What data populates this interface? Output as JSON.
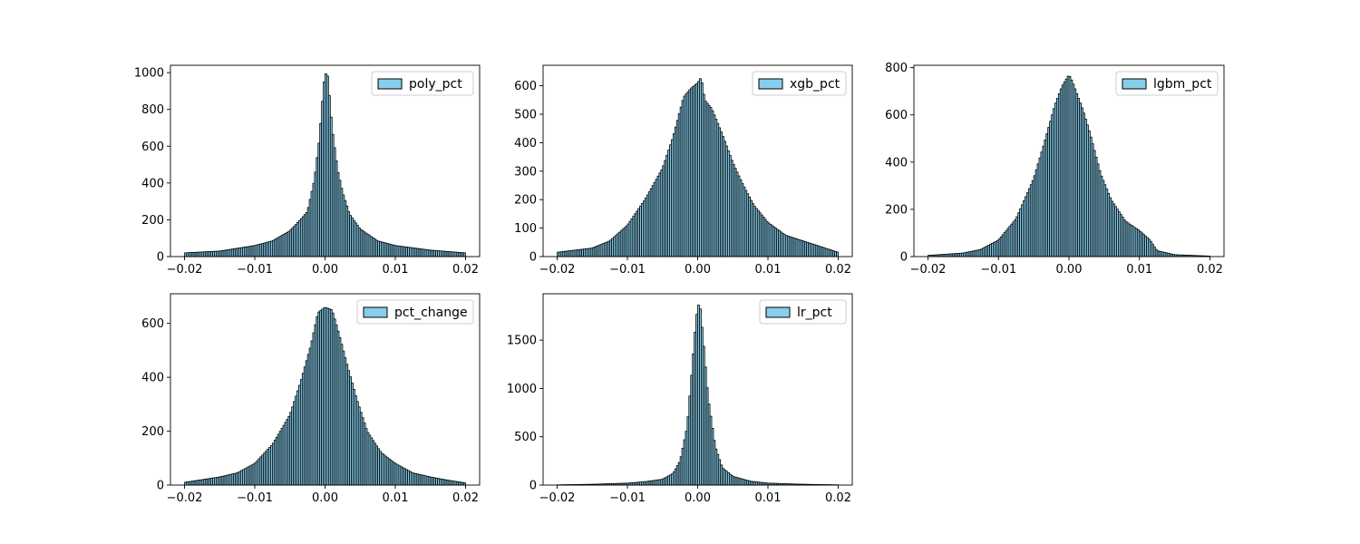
{
  "chart_data": [
    {
      "type": "bar",
      "legend": "poly_pct",
      "legend_position": "upper right",
      "bar_color": "#87ceeb",
      "edge_color": "#000000",
      "xlim": [
        -0.022,
        0.022
      ],
      "ylim": [
        0,
        1040
      ],
      "xticks": [
        -0.02,
        -0.01,
        0.0,
        0.01,
        0.02
      ],
      "xtick_labels": [
        "−0.02",
        "−0.01",
        "0.00",
        "0.01",
        "0.02"
      ],
      "yticks": [
        0,
        200,
        400,
        600,
        800,
        1000
      ],
      "ytick_labels": [
        "0",
        "200",
        "400",
        "600",
        "800",
        "1000"
      ],
      "bin_range": [
        -0.02,
        0.02
      ],
      "bins": 160,
      "peaks": [
        [
          -0.02,
          20
        ],
        [
          -0.015,
          30
        ],
        [
          -0.01,
          60
        ],
        [
          -0.0075,
          85
        ],
        [
          -0.005,
          140
        ],
        [
          -0.0035,
          200
        ],
        [
          -0.0025,
          245
        ],
        [
          -0.0015,
          420
        ],
        [
          -0.0008,
          640
        ],
        [
          -0.0003,
          880
        ],
        [
          0.0,
          1000
        ],
        [
          0.0004,
          980
        ],
        [
          0.001,
          700
        ],
        [
          0.0018,
          470
        ],
        [
          0.0025,
          350
        ],
        [
          0.0035,
          230
        ],
        [
          0.005,
          150
        ],
        [
          0.0075,
          85
        ],
        [
          0.01,
          60
        ],
        [
          0.015,
          35
        ],
        [
          0.02,
          20
        ]
      ]
    },
    {
      "type": "bar",
      "legend": "xgb_pct",
      "legend_position": "upper right",
      "bar_color": "#87ceeb",
      "edge_color": "#000000",
      "xlim": [
        -0.022,
        0.022
      ],
      "ylim": [
        0,
        672
      ],
      "xticks": [
        -0.02,
        -0.01,
        0.0,
        0.01,
        0.02
      ],
      "xtick_labels": [
        "−0.02",
        "−0.01",
        "0.00",
        "0.01",
        "0.02"
      ],
      "yticks": [
        0,
        100,
        200,
        300,
        400,
        500,
        600
      ],
      "ytick_labels": [
        "0",
        "100",
        "200",
        "300",
        "400",
        "500",
        "600"
      ],
      "bin_range": [
        -0.02,
        0.02
      ],
      "bins": 160,
      "peaks": [
        [
          -0.02,
          15
        ],
        [
          -0.015,
          30
        ],
        [
          -0.0125,
          55
        ],
        [
          -0.01,
          110
        ],
        [
          -0.0075,
          200
        ],
        [
          -0.005,
          310
        ],
        [
          -0.0035,
          420
        ],
        [
          -0.002,
          560
        ],
        [
          -0.001,
          590
        ],
        [
          0.0,
          610
        ],
        [
          0.0005,
          630
        ],
        [
          0.001,
          550
        ],
        [
          0.002,
          520
        ],
        [
          0.0035,
          430
        ],
        [
          0.005,
          330
        ],
        [
          0.0065,
          250
        ],
        [
          0.008,
          180
        ],
        [
          0.01,
          120
        ],
        [
          0.0125,
          75
        ],
        [
          0.015,
          55
        ],
        [
          0.0175,
          35
        ],
        [
          0.02,
          15
        ]
      ]
    },
    {
      "type": "bar",
      "legend": "lgbm_pct",
      "legend_position": "upper right",
      "bar_color": "#87ceeb",
      "edge_color": "#000000",
      "xlim": [
        -0.022,
        0.022
      ],
      "ylim": [
        0,
        810
      ],
      "xticks": [
        -0.02,
        -0.01,
        0.0,
        0.01,
        0.02
      ],
      "xtick_labels": [
        "−0.02",
        "−0.01",
        "0.00",
        "0.01",
        "0.02"
      ],
      "yticks": [
        0,
        200,
        400,
        600,
        800
      ],
      "ytick_labels": [
        "0",
        "200",
        "400",
        "600",
        "800"
      ],
      "bin_range": [
        -0.02,
        0.02
      ],
      "bins": 160,
      "peaks": [
        [
          -0.02,
          5
        ],
        [
          -0.015,
          15
        ],
        [
          -0.0125,
          30
        ],
        [
          -0.01,
          70
        ],
        [
          -0.0075,
          160
        ],
        [
          -0.005,
          330
        ],
        [
          -0.0035,
          480
        ],
        [
          -0.002,
          640
        ],
        [
          -0.001,
          720
        ],
        [
          0.0,
          770
        ],
        [
          0.0005,
          740
        ],
        [
          0.001,
          700
        ],
        [
          0.002,
          620
        ],
        [
          0.003,
          520
        ],
        [
          0.0045,
          350
        ],
        [
          0.006,
          240
        ],
        [
          0.008,
          150
        ],
        [
          0.01,
          110
        ],
        [
          0.0115,
          70
        ],
        [
          0.0125,
          25
        ],
        [
          0.015,
          8
        ],
        [
          0.02,
          2
        ]
      ]
    },
    {
      "type": "bar",
      "legend": "pct_change",
      "legend_position": "upper right",
      "bar_color": "#87ceeb",
      "edge_color": "#000000",
      "xlim": [
        -0.022,
        0.022
      ],
      "ylim": [
        0,
        710
      ],
      "xticks": [
        -0.02,
        -0.01,
        0.0,
        0.01,
        0.02
      ],
      "xtick_labels": [
        "−0.02",
        "−0.01",
        "0.00",
        "0.01",
        "0.02"
      ],
      "yticks": [
        0,
        200,
        400,
        600
      ],
      "ytick_labels": [
        "0",
        "200",
        "400",
        "600"
      ],
      "bin_range": [
        -0.02,
        0.02
      ],
      "bins": 160,
      "peaks": [
        [
          -0.02,
          10
        ],
        [
          -0.015,
          30
        ],
        [
          -0.0125,
          45
        ],
        [
          -0.01,
          80
        ],
        [
          -0.0075,
          150
        ],
        [
          -0.005,
          260
        ],
        [
          -0.0035,
          380
        ],
        [
          -0.002,
          520
        ],
        [
          -0.001,
          640
        ],
        [
          0.0,
          660
        ],
        [
          0.001,
          650
        ],
        [
          0.002,
          560
        ],
        [
          0.003,
          460
        ],
        [
          0.0045,
          320
        ],
        [
          0.006,
          200
        ],
        [
          0.008,
          120
        ],
        [
          0.01,
          80
        ],
        [
          0.0125,
          45
        ],
        [
          0.015,
          30
        ],
        [
          0.0175,
          18
        ],
        [
          0.02,
          8
        ]
      ]
    },
    {
      "type": "bar",
      "legend": "lr_pct",
      "legend_position": "upper right",
      "bar_color": "#87ceeb",
      "edge_color": "#000000",
      "xlim": [
        -0.022,
        0.022
      ],
      "ylim": [
        0,
        1980
      ],
      "xticks": [
        -0.02,
        -0.01,
        0.0,
        0.01,
        0.02
      ],
      "xtick_labels": [
        "−0.02",
        "−0.01",
        "0.00",
        "0.01",
        "0.02"
      ],
      "yticks": [
        0,
        500,
        1000,
        1500
      ],
      "ytick_labels": [
        "0",
        "500",
        "1000",
        "1500"
      ],
      "bin_range": [
        -0.02,
        0.02
      ],
      "bins": 160,
      "peaks": [
        [
          -0.02,
          2
        ],
        [
          -0.015,
          8
        ],
        [
          -0.01,
          20
        ],
        [
          -0.0075,
          35
        ],
        [
          -0.005,
          60
        ],
        [
          -0.0035,
          120
        ],
        [
          -0.0025,
          250
        ],
        [
          -0.0015,
          600
        ],
        [
          -0.0008,
          1200
        ],
        [
          -0.0003,
          1650
        ],
        [
          0.0,
          1850
        ],
        [
          0.0003,
          1880
        ],
        [
          0.0008,
          1500
        ],
        [
          0.0015,
          900
        ],
        [
          0.0025,
          400
        ],
        [
          0.0035,
          180
        ],
        [
          0.005,
          90
        ],
        [
          0.0075,
          40
        ],
        [
          0.01,
          20
        ],
        [
          0.015,
          8
        ],
        [
          0.02,
          2
        ]
      ]
    }
  ]
}
